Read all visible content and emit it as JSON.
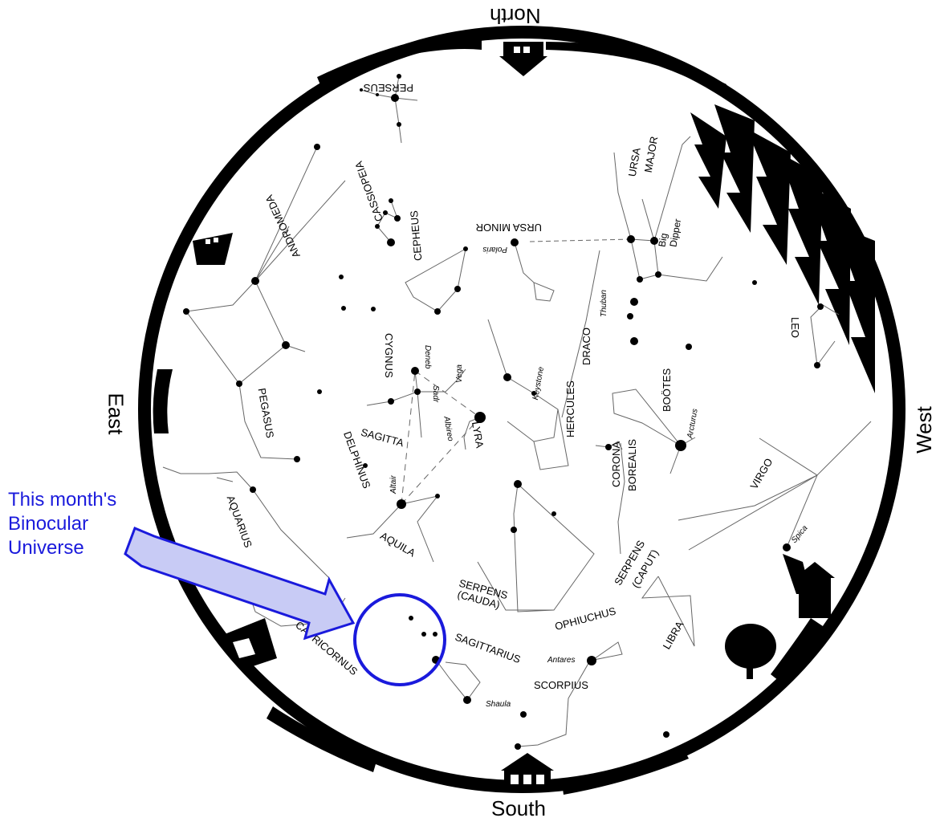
{
  "directions": {
    "north": "North",
    "south": "South",
    "east": "East",
    "west": "West"
  },
  "callout": {
    "lines": [
      "This month's",
      "Binocular",
      "Universe"
    ]
  },
  "constellations": {
    "perseus": "PERSEUS",
    "cassiopeia": "CASSIOPEIA",
    "andromeda": "ANDROMEDA",
    "cepheus": "CEPHEUS",
    "ursa_minor": "URSA MINOR",
    "ursa_major_1": "URSA",
    "ursa_major_2": "MAJOR",
    "big_dipper_1": "Big",
    "big_dipper_2": "Dipper",
    "cygnus": "CYGNUS",
    "draco": "DRACO",
    "leo": "LEO",
    "pegasus": "PEGASUS",
    "lyra": "LYRA",
    "hercules": "HERCULES",
    "bootes": "BOÖTES",
    "corona_borealis_1": "CORONA",
    "corona_borealis_2": "BOREALIS",
    "sagitta": "SAGITTA",
    "delphinus": "DELPHINUS",
    "aquarius": "AQUARIUS",
    "aquila": "AQUILA",
    "virgo": "VIRGO",
    "serpens_caput_1": "SERPENS",
    "serpens_caput_2": "(CAPUT)",
    "serpens_cauda_1": "SERPENS",
    "serpens_cauda_2": "(CAUDA)",
    "ophiuchus": "OPHIUCHUS",
    "libra": "LIBRA",
    "sagittarius": "SAGITTARIUS",
    "scorpius": "SCORPIUS",
    "capricornus": "CAPRICORNUS"
  },
  "stars": {
    "polaris": "Polaris",
    "thuban": "Thuban",
    "deneb": "Deneb",
    "sadr": "Sadr",
    "albireo": "Albireo",
    "vega": "Vega",
    "keystone": "Keystone",
    "arcturus": "Arcturus",
    "altair": "Altair",
    "spica": "Spica",
    "antares": "Antares",
    "shaula": "Shaula"
  },
  "colors": {
    "sky": "#ffffff",
    "horizon": "#000000",
    "callout": "#1a1adc",
    "arrow_fill": "#c8cbf5"
  }
}
